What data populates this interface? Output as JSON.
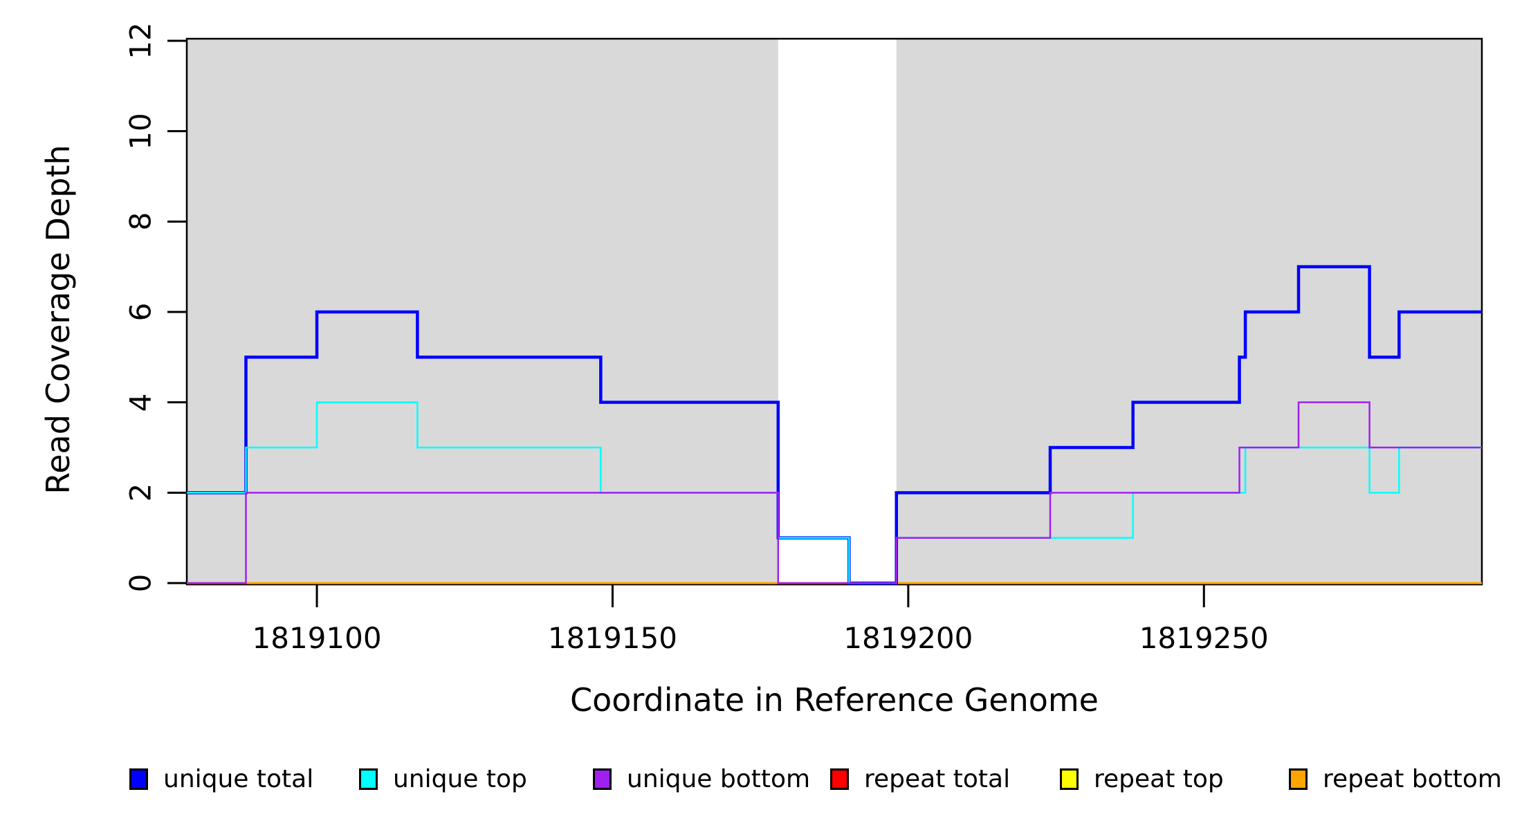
{
  "figure": {
    "xlabel": "Coordinate in Reference Genome",
    "ylabel": "Read Coverage Depth"
  },
  "chart_data": {
    "type": "line",
    "subtype": "step",
    "title": "",
    "xlabel": "Coordinate in Reference Genome",
    "ylabel": "Read Coverage Depth",
    "xlim": [
      1819078,
      1819297
    ],
    "ylim": [
      0,
      12
    ],
    "x_ticks": [
      1819100,
      1819150,
      1819200,
      1819250
    ],
    "y_ticks": [
      0,
      2,
      4,
      6,
      8,
      10,
      12
    ],
    "grid": false,
    "legend_position": "bottom",
    "plot_bg": "#ffffff",
    "shaded_region_color": "#d9d9d9",
    "shaded_regions": [
      {
        "name": "gray-band-left",
        "x_start": 1819078,
        "x_end": 1819178
      },
      {
        "name": "gray-band-right",
        "x_start": 1819198,
        "x_end": 1819297
      }
    ],
    "series": [
      {
        "name": "repeat total",
        "color": "#ff0000",
        "line_width": 2,
        "steps": [
          [
            1819078,
            0
          ]
        ]
      },
      {
        "name": "repeat top",
        "color": "#ffff00",
        "line_width": 2,
        "steps": [
          [
            1819078,
            0
          ]
        ]
      },
      {
        "name": "repeat bottom",
        "color": "#ffa500",
        "line_width": 3,
        "steps": [
          [
            1819078,
            0
          ]
        ]
      },
      {
        "name": "unique total",
        "color": "#0000ff",
        "line_width": 4.5,
        "steps": [
          [
            1819078,
            2
          ],
          [
            1819088,
            5
          ],
          [
            1819100,
            6
          ],
          [
            1819117,
            5
          ],
          [
            1819148,
            4
          ],
          [
            1819178,
            1
          ],
          [
            1819190,
            0
          ],
          [
            1819198,
            2
          ],
          [
            1819224,
            3
          ],
          [
            1819238,
            4
          ],
          [
            1819256,
            5
          ],
          [
            1819257,
            6
          ],
          [
            1819266,
            7
          ],
          [
            1819278,
            5
          ],
          [
            1819283,
            6
          ]
        ]
      },
      {
        "name": "unique top",
        "color": "#00ffff",
        "line_width": 2.5,
        "steps": [
          [
            1819078,
            2
          ],
          [
            1819088,
            3
          ],
          [
            1819100,
            4
          ],
          [
            1819117,
            3
          ],
          [
            1819148,
            2
          ],
          [
            1819178,
            1
          ],
          [
            1819190,
            0
          ],
          [
            1819198,
            1
          ],
          [
            1819238,
            2
          ],
          [
            1819257,
            3
          ],
          [
            1819278,
            2
          ],
          [
            1819283,
            3
          ]
        ]
      },
      {
        "name": "unique bottom",
        "color": "#a020f0",
        "line_width": 2.5,
        "steps": [
          [
            1819078,
            0
          ],
          [
            1819088,
            2
          ],
          [
            1819178,
            0
          ],
          [
            1819198,
            1
          ],
          [
            1819224,
            2
          ],
          [
            1819256,
            3
          ],
          [
            1819266,
            4
          ],
          [
            1819278,
            3
          ]
        ]
      }
    ],
    "legend": [
      {
        "label": "unique total",
        "color": "#0000ff"
      },
      {
        "label": "unique top",
        "color": "#00ffff"
      },
      {
        "label": "unique bottom",
        "color": "#a020f0"
      },
      {
        "label": "repeat total",
        "color": "#ff0000"
      },
      {
        "label": "repeat top",
        "color": "#ffff00"
      },
      {
        "label": "repeat bottom",
        "color": "#ffa500"
      }
    ]
  }
}
